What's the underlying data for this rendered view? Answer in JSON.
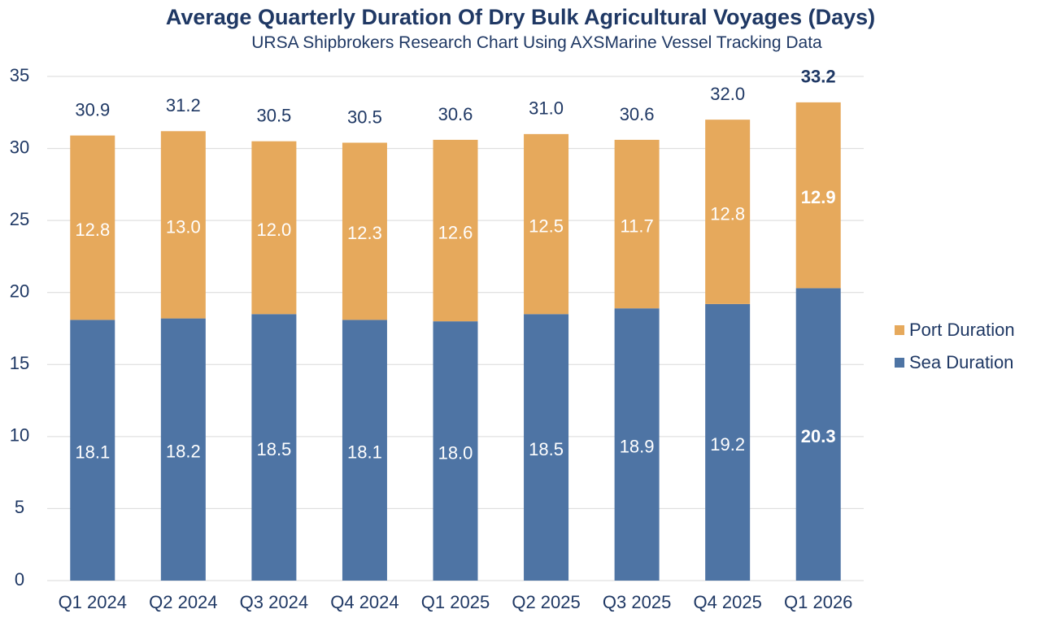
{
  "chart_data": {
    "type": "bar",
    "stacked": true,
    "title": "Average Quarterly Duration Of Dry Bulk Agricultural Voyages (Days)",
    "subtitle": "URSA Shipbrokers Research Chart Using AXSMarine Vessel Tracking Data",
    "categories": [
      "Q1 2024",
      "Q2 2024",
      "Q3 2024",
      "Q4 2024",
      "Q1 2025",
      "Q2 2025",
      "Q3 2025",
      "Q4 2025",
      "Q1 2026"
    ],
    "series": [
      {
        "name": "Sea Duration",
        "color": "#4e74a4",
        "values": [
          18.1,
          18.2,
          18.5,
          18.1,
          18.0,
          18.5,
          18.9,
          19.2,
          20.3
        ]
      },
      {
        "name": "Port Duration",
        "color": "#e6a95c",
        "values": [
          12.8,
          13.0,
          12.0,
          12.3,
          12.6,
          12.5,
          11.7,
          12.8,
          12.9
        ]
      }
    ],
    "totals": [
      30.9,
      31.2,
      30.5,
      30.5,
      30.6,
      31.0,
      30.6,
      32.0,
      33.2
    ],
    "value_labels": {
      "Sea Duration": [
        "18.1",
        "18.2",
        "18.5",
        "18.1",
        "18.0",
        "18.5",
        "18.9",
        "19.2",
        "20.3"
      ],
      "Port Duration": [
        "12.8",
        "13.0",
        "12.0",
        "12.3",
        "12.6",
        "12.5",
        "11.7",
        "12.8",
        "12.9"
      ],
      "totals": [
        "30.9",
        "31.2",
        "30.5",
        "30.5",
        "30.6",
        "31.0",
        "30.6",
        "32.0",
        "33.2"
      ]
    },
    "ylim": [
      0,
      35
    ],
    "yticks": [
      0,
      5,
      10,
      15,
      20,
      25,
      30,
      35
    ],
    "ytick_labels": [
      "0",
      "5",
      "10",
      "15",
      "20",
      "25",
      "30",
      "35"
    ],
    "grid": true,
    "legend": "right",
    "highlight_last": true,
    "xlabel": "",
    "ylabel": ""
  },
  "legend": [
    {
      "label": "Port Duration",
      "color": "#e6a95c"
    },
    {
      "label": "Sea Duration",
      "color": "#4e74a4"
    }
  ],
  "colors": {
    "text": "#1f3864",
    "grid": "#d9d9d9",
    "inner_label": "#ffffff"
  }
}
